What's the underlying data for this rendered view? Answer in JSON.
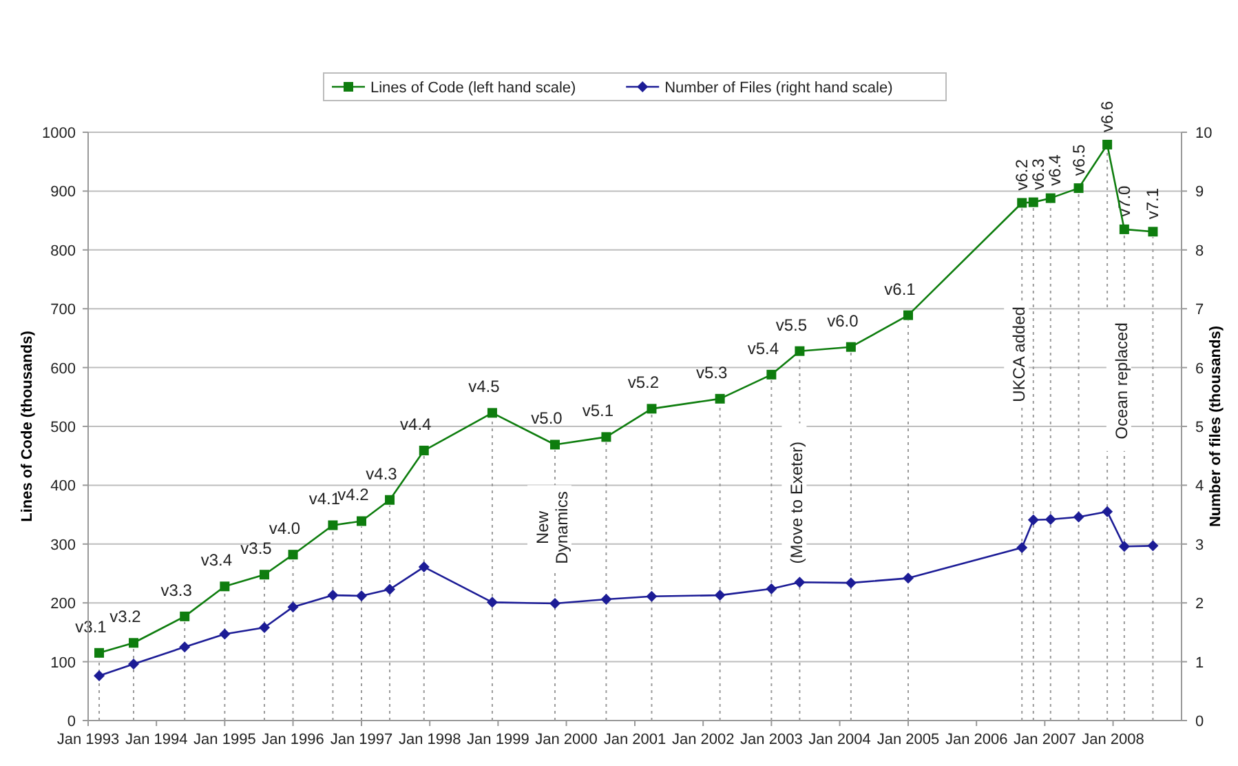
{
  "chart_data": {
    "type": "line",
    "ylabel": "Lines of Code (thousands)",
    "y2label": "Number of files (thousands)",
    "x": [
      "1993-03",
      "1993-09",
      "1994-06",
      "1995-01",
      "1995-08",
      "1996-01",
      "1996-08",
      "1997-01",
      "1997-06",
      "1997-12",
      "1998-12",
      "1999-11",
      "2000-08",
      "2001-04",
      "2002-04",
      "2003-01",
      "2003-06",
      "2004-03",
      "2005-01",
      "2006-09",
      "2006-11",
      "2007-02",
      "2007-07",
      "2007-12",
      "2008-03",
      "2008-08"
    ],
    "series": [
      {
        "name": "Lines of Code (left hand scale)",
        "color": "#0e7d0e",
        "marker": "square",
        "values": [
          115,
          132,
          177,
          228,
          248,
          282,
          332,
          339,
          375,
          459,
          523,
          469,
          482,
          530,
          547,
          588,
          628,
          635,
          689,
          880,
          881,
          888,
          905,
          979,
          835,
          831
        ]
      },
      {
        "name": "Number of Files (right hand scale)",
        "color": "#1c1c96",
        "marker": "diamond",
        "axis": "y2",
        "values": [
          0.76,
          0.96,
          1.25,
          1.47,
          1.58,
          1.93,
          2.13,
          2.12,
          2.23,
          2.61,
          2.01,
          1.99,
          2.06,
          2.11,
          2.13,
          2.24,
          2.35,
          2.34,
          2.42,
          2.94,
          3.41,
          3.42,
          3.46,
          3.55,
          2.96,
          2.97
        ]
      }
    ],
    "xlim": [
      "1993-01",
      "2009-01"
    ],
    "xticks": [
      {
        "value": "1993-01",
        "label": "Jan 1993"
      },
      {
        "value": "1994-01",
        "label": "Jan 1994"
      },
      {
        "value": "1995-01",
        "label": "Jan 1995"
      },
      {
        "value": "1996-01",
        "label": "Jan 1996"
      },
      {
        "value": "1997-01",
        "label": "Jan 1997"
      },
      {
        "value": "1998-01",
        "label": "Jan 1998"
      },
      {
        "value": "1999-01",
        "label": "Jan 1999"
      },
      {
        "value": "2000-01",
        "label": "Jan 2000"
      },
      {
        "value": "2001-01",
        "label": "Jan 2001"
      },
      {
        "value": "2002-01",
        "label": "Jan 2002"
      },
      {
        "value": "2003-01",
        "label": "Jan 2003"
      },
      {
        "value": "2004-01",
        "label": "Jan 2004"
      },
      {
        "value": "2005-01",
        "label": "Jan 2005"
      },
      {
        "value": "2006-01",
        "label": "Jan 2006"
      },
      {
        "value": "2007-01",
        "label": "Jan 2007"
      },
      {
        "value": "2008-01",
        "label": "Jan 2008"
      }
    ],
    "ylim": [
      0,
      1000
    ],
    "yticks": [
      0,
      100,
      200,
      300,
      400,
      500,
      600,
      700,
      800,
      900,
      1000
    ],
    "y2lim": [
      0,
      10
    ],
    "y2ticks": [
      0,
      1,
      2,
      3,
      4,
      5,
      6,
      7,
      8,
      9,
      10
    ],
    "grid": "y",
    "legend": "top",
    "ref_lines": [
      {
        "axis": "x",
        "value": "1993-03",
        "line_style": "dotted",
        "color": "#999999"
      },
      {
        "axis": "x",
        "value": "1993-09",
        "line_style": "dotted",
        "color": "#999999"
      },
      {
        "axis": "x",
        "value": "1994-06",
        "line_style": "dotted",
        "color": "#999999"
      },
      {
        "axis": "x",
        "value": "1995-01",
        "line_style": "dotted",
        "color": "#999999"
      },
      {
        "axis": "x",
        "value": "1995-08",
        "line_style": "dotted",
        "color": "#999999"
      },
      {
        "axis": "x",
        "value": "1996-01",
        "line_style": "dotted",
        "color": "#999999"
      },
      {
        "axis": "x",
        "value": "1996-08",
        "line_style": "dotted",
        "color": "#999999"
      },
      {
        "axis": "x",
        "value": "1997-01",
        "line_style": "dotted",
        "color": "#999999"
      },
      {
        "axis": "x",
        "value": "1997-06",
        "line_style": "dotted",
        "color": "#999999"
      },
      {
        "axis": "x",
        "value": "1997-12",
        "line_style": "dotted",
        "color": "#999999"
      },
      {
        "axis": "x",
        "value": "1998-12",
        "line_style": "dotted",
        "color": "#999999"
      },
      {
        "axis": "x",
        "value": "1999-11",
        "line_style": "dotted",
        "color": "#999999"
      },
      {
        "axis": "x",
        "value": "2000-08",
        "line_style": "dotted",
        "color": "#999999"
      },
      {
        "axis": "x",
        "value": "2001-04",
        "line_style": "dotted",
        "color": "#999999"
      },
      {
        "axis": "x",
        "value": "2002-04",
        "line_style": "dotted",
        "color": "#999999"
      },
      {
        "axis": "x",
        "value": "2003-01",
        "line_style": "dotted",
        "color": "#999999"
      },
      {
        "axis": "x",
        "value": "2003-06",
        "line_style": "dotted",
        "color": "#999999"
      },
      {
        "axis": "x",
        "value": "2004-03",
        "line_style": "dotted",
        "color": "#999999"
      },
      {
        "axis": "x",
        "value": "2005-01",
        "line_style": "dotted",
        "color": "#999999"
      },
      {
        "axis": "x",
        "value": "2006-09",
        "line_style": "dotted",
        "color": "#999999"
      },
      {
        "axis": "x",
        "value": "2006-11",
        "line_style": "dotted",
        "color": "#999999"
      },
      {
        "axis": "x",
        "value": "2007-02",
        "line_style": "dotted",
        "color": "#999999"
      },
      {
        "axis": "x",
        "value": "2007-07",
        "line_style": "dotted",
        "color": "#999999"
      },
      {
        "axis": "x",
        "value": "2007-12",
        "line_style": "dotted",
        "color": "#999999"
      },
      {
        "axis": "x",
        "value": "2008-03",
        "line_style": "dotted",
        "color": "#999999"
      },
      {
        "axis": "x",
        "value": "2008-08",
        "line_style": "dotted",
        "color": "#999999"
      }
    ],
    "annotations": [
      {
        "text": "v3.1",
        "x": "1993-03",
        "y": 115
      },
      {
        "text": "v3.2",
        "x": "1993-09",
        "y": 132
      },
      {
        "text": "v3.3",
        "x": "1994-06",
        "y": 177
      },
      {
        "text": "v3.4",
        "x": "1995-01",
        "y": 228
      },
      {
        "text": "v3.5",
        "x": "1995-08",
        "y": 248
      },
      {
        "text": "v4.0",
        "x": "1996-01",
        "y": 282
      },
      {
        "text": "v4.1",
        "x": "1996-08",
        "y": 332
      },
      {
        "text": "v4.2",
        "x": "1997-01",
        "y": 339
      },
      {
        "text": "v4.3",
        "x": "1997-06",
        "y": 375
      },
      {
        "text": "v4.4",
        "x": "1997-12",
        "y": 459
      },
      {
        "text": "v4.5",
        "x": "1998-12",
        "y": 523
      },
      {
        "text": "v5.0",
        "x": "1999-11",
        "y": 469
      },
      {
        "text": "v5.1",
        "x": "2000-08",
        "y": 482
      },
      {
        "text": "v5.2",
        "x": "2001-04",
        "y": 530
      },
      {
        "text": "v5.3",
        "x": "2002-04",
        "y": 547
      },
      {
        "text": "v5.4",
        "x": "2003-01",
        "y": 588
      },
      {
        "text": "v5.5",
        "x": "2003-06",
        "y": 628
      },
      {
        "text": "v6.0",
        "x": "2004-03",
        "y": 635
      },
      {
        "text": "v6.1",
        "x": "2005-01",
        "y": 689
      },
      {
        "text": "v6.2",
        "x": "2006-09",
        "y": 880
      },
      {
        "text": "v6.3",
        "x": "2006-11",
        "y": 881
      },
      {
        "text": "v6.4",
        "x": "2007-02",
        "y": 888
      },
      {
        "text": "v6.5",
        "x": "2007-07",
        "y": 905
      },
      {
        "text": "v6.6",
        "x": "2007-12",
        "y": 979
      },
      {
        "text": "v7.0",
        "x": "2008-03",
        "y": 835
      },
      {
        "text": "v7.1",
        "x": "2008-08",
        "y": 831
      },
      {
        "text": "New\nDynamics",
        "x": "1999-11"
      },
      {
        "text": "(Move to Exeter)",
        "x": "2003-06"
      },
      {
        "text": "UKCA added",
        "x": "2006-09"
      },
      {
        "text": "Ocean replaced",
        "x": "2008-03"
      }
    ]
  }
}
